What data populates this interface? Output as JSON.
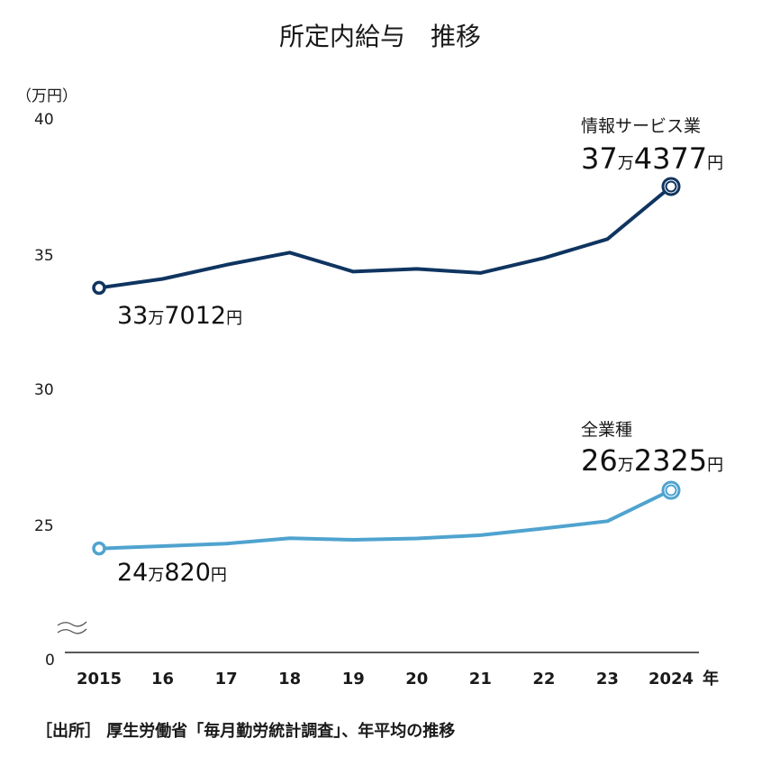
{
  "chart_data": {
    "type": "line",
    "title": "所定内給与　推移",
    "y_unit_label": "（万円）",
    "x_unit_label": "年",
    "categories": [
      "2015",
      "16",
      "17",
      "18",
      "19",
      "20",
      "21",
      "22",
      "23",
      "2024"
    ],
    "yticks": [
      "40",
      "35",
      "30",
      "25",
      "0"
    ],
    "ylim": [
      0,
      40
    ],
    "axis_break_between": [
      0,
      22
    ],
    "series": [
      {
        "name": "情報サービス業",
        "color": "#0f3460",
        "values": [
          33.7,
          34.03,
          34.55,
          35.0,
          34.3,
          34.4,
          34.25,
          34.8,
          35.5,
          37.44
        ],
        "start_label": {
          "number1": "33",
          "unit1": "万",
          "number2": "7012",
          "unit2": "円"
        },
        "end_label": {
          "number1": "37",
          "unit1": "万",
          "number2": "4377",
          "unit2": "円"
        }
      },
      {
        "name": "全業種",
        "color": "#4fa3cf",
        "values": [
          24.08,
          24.17,
          24.26,
          24.46,
          24.4,
          24.45,
          24.57,
          24.82,
          25.09,
          26.23
        ],
        "start_label": {
          "number1": "24",
          "unit1": "万",
          "number2": "820",
          "unit2": "円"
        },
        "end_label": {
          "number1": "26",
          "unit1": "万",
          "number2": "2325",
          "unit2": "円"
        }
      }
    ],
    "source": "［出所］ 厚生労働省「毎月勤労統計調査」、年平均の推移"
  }
}
